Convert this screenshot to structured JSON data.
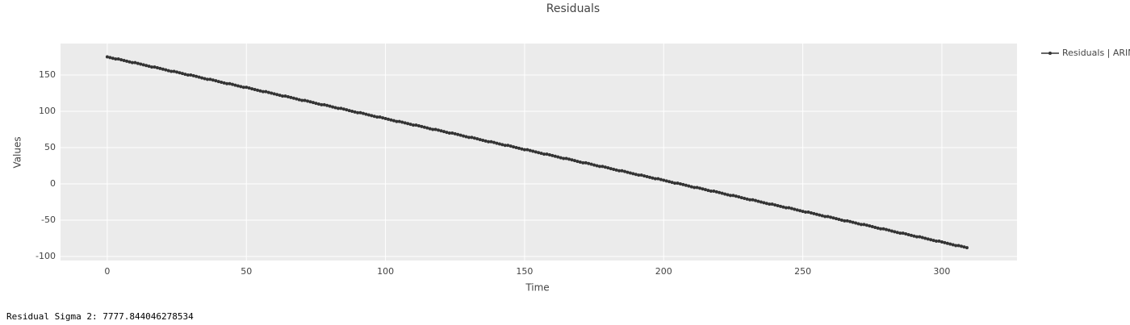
{
  "chart_data": {
    "type": "line",
    "title": "Residuals",
    "x_label": "Time",
    "y_label": "Values",
    "x": [
      0,
      1,
      2,
      3,
      4,
      5,
      6,
      7,
      8,
      9,
      10,
      11,
      12,
      13,
      14,
      15,
      16,
      17,
      18,
      19,
      20,
      21,
      22,
      23,
      24,
      25,
      26,
      27,
      28,
      29,
      30,
      31,
      32,
      33,
      34,
      35,
      36,
      37,
      38,
      39,
      40,
      41,
      42,
      43,
      44,
      45,
      46,
      47,
      48,
      49,
      50,
      51,
      52,
      53,
      54,
      55,
      56,
      57,
      58,
      59,
      60,
      61,
      62,
      63,
      64,
      65,
      66,
      67,
      68,
      69,
      70,
      71,
      72,
      73,
      74,
      75,
      76,
      77,
      78,
      79,
      80,
      81,
      82,
      83,
      84,
      85,
      86,
      87,
      88,
      89,
      90,
      91,
      92,
      93,
      94,
      95,
      96,
      97,
      98,
      99,
      100,
      101,
      102,
      103,
      104,
      105,
      106,
      107,
      108,
      109,
      110,
      111,
      112,
      113,
      114,
      115,
      116,
      117,
      118,
      119,
      120,
      121,
      122,
      123,
      124,
      125,
      126,
      127,
      128,
      129,
      130,
      131,
      132,
      133,
      134,
      135,
      136,
      137,
      138,
      139,
      140,
      141,
      142,
      143,
      144,
      145,
      146,
      147,
      148,
      149,
      150,
      151,
      152,
      153,
      154,
      155,
      156,
      157,
      158,
      159,
      160,
      161,
      162,
      163,
      164,
      165,
      166,
      167,
      168,
      169,
      170,
      171,
      172,
      173,
      174,
      175,
      176,
      177,
      178,
      179,
      180,
      181,
      182,
      183,
      184,
      185,
      186,
      187,
      188,
      189,
      190,
      191,
      192,
      193,
      194,
      195,
      196,
      197,
      198,
      199,
      200,
      201,
      202,
      203,
      204,
      205,
      206,
      207,
      208,
      209,
      210,
      211,
      212,
      213,
      214,
      215,
      216,
      217,
      218,
      219,
      220,
      221,
      222,
      223,
      224,
      225,
      226,
      227,
      228,
      229,
      230,
      231,
      232,
      233,
      234,
      235,
      236,
      237,
      238,
      239,
      240,
      241,
      242,
      243,
      244,
      245,
      246,
      247,
      248,
      249,
      250,
      251,
      252,
      253,
      254,
      255,
      256,
      257,
      258,
      259,
      260,
      261,
      262,
      263,
      264,
      265,
      266,
      267,
      268,
      269,
      270,
      271,
      272,
      273,
      274,
      275,
      276,
      277,
      278,
      279,
      280,
      281,
      282,
      283,
      284,
      285,
      286,
      287,
      288,
      289,
      290,
      291,
      292,
      293,
      294,
      295,
      296,
      297,
      298,
      299,
      300,
      301,
      302,
      303,
      304,
      305,
      306,
      307,
      308,
      309
    ],
    "series": [
      {
        "name": "Residuals | ARIMA",
        "color": "#333333",
        "values": [
          175,
          174,
          173,
          172,
          172,
          171,
          170,
          169,
          168,
          167,
          167,
          166,
          165,
          164,
          163,
          162,
          161,
          161,
          160,
          159,
          158,
          157,
          156,
          155,
          155,
          154,
          153,
          152,
          151,
          150,
          150,
          149,
          148,
          147,
          146,
          145,
          144,
          144,
          143,
          142,
          141,
          140,
          139,
          138,
          138,
          137,
          136,
          135,
          134,
          133,
          133,
          132,
          131,
          130,
          129,
          128,
          127,
          127,
          126,
          125,
          124,
          123,
          122,
          121,
          121,
          120,
          119,
          118,
          117,
          116,
          115,
          115,
          114,
          113,
          112,
          111,
          110,
          109,
          109,
          108,
          107,
          106,
          105,
          104,
          104,
          103,
          102,
          101,
          100,
          99,
          98,
          98,
          97,
          96,
          95,
          94,
          93,
          92,
          92,
          91,
          90,
          89,
          88,
          87,
          86,
          86,
          85,
          84,
          83,
          82,
          81,
          81,
          80,
          79,
          78,
          77,
          76,
          75,
          75,
          74,
          73,
          72,
          71,
          70,
          70,
          69,
          68,
          67,
          66,
          65,
          64,
          64,
          63,
          62,
          61,
          60,
          59,
          58,
          58,
          57,
          56,
          55,
          54,
          53,
          53,
          52,
          51,
          50,
          49,
          48,
          47,
          47,
          46,
          45,
          44,
          43,
          42,
          41,
          41,
          40,
          39,
          38,
          37,
          36,
          35,
          35,
          34,
          33,
          32,
          31,
          30,
          29,
          29,
          28,
          27,
          26,
          25,
          24,
          24,
          23,
          22,
          21,
          20,
          19,
          18,
          18,
          17,
          16,
          15,
          14,
          13,
          12,
          12,
          11,
          10,
          9,
          8,
          7,
          7,
          6,
          5,
          4,
          3,
          2,
          1,
          1,
          0,
          -1,
          -2,
          -3,
          -4,
          -5,
          -5,
          -6,
          -7,
          -8,
          -9,
          -10,
          -10,
          -11,
          -12,
          -13,
          -14,
          -15,
          -16,
          -16,
          -17,
          -18,
          -19,
          -20,
          -21,
          -22,
          -22,
          -23,
          -24,
          -25,
          -26,
          -27,
          -28,
          -28,
          -29,
          -30,
          -31,
          -32,
          -33,
          -33,
          -34,
          -35,
          -36,
          -37,
          -38,
          -39,
          -39,
          -40,
          -41,
          -42,
          -43,
          -44,
          -45,
          -45,
          -46,
          -47,
          -48,
          -49,
          -50,
          -51,
          -51,
          -52,
          -53,
          -54,
          -55,
          -56,
          -56,
          -57,
          -58,
          -59,
          -60,
          -61,
          -62,
          -62,
          -63,
          -64,
          -65,
          -66,
          -67,
          -68,
          -68,
          -69,
          -70,
          -71,
          -72,
          -73,
          -73,
          -74,
          -75,
          -76,
          -77,
          -78,
          -79,
          -79,
          -80,
          -81,
          -82,
          -83,
          -84,
          -85,
          -85,
          -86,
          -87,
          -88
        ]
      }
    ],
    "xlim": [
      -16.8,
      327
    ],
    "xticks": [
      0,
      50,
      100,
      150,
      200,
      250,
      300
    ],
    "ylim": [
      -105.6,
      193.3
    ],
    "yticks": [
      -100,
      -50,
      0,
      50,
      100,
      150
    ],
    "grid": true,
    "legend": "outside-top-right"
  },
  "footer": "Residual Sigma 2: 7777.844046278534"
}
